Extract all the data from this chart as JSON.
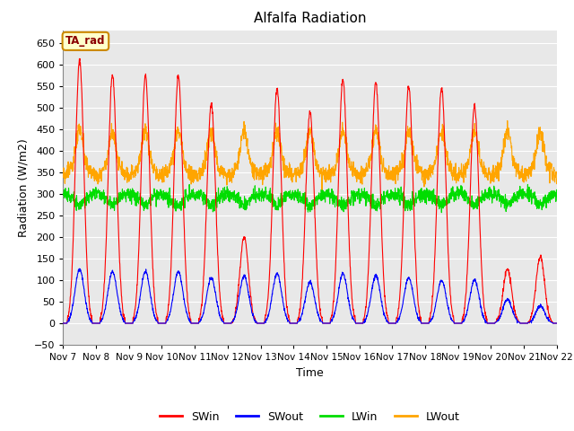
{
  "title": "Alfalfa Radiation",
  "ylabel": "Radiation (W/m2)",
  "xlabel": "Time",
  "annotation": "TA_rad",
  "ylim": [
    -50,
    680
  ],
  "yticks": [
    -50,
    0,
    50,
    100,
    150,
    200,
    250,
    300,
    350,
    400,
    450,
    500,
    550,
    600,
    650
  ],
  "xticklabels": [
    "Nov 7",
    "Nov 8",
    "Nov 9",
    "Nov 10",
    "Nov 11",
    "Nov 12",
    "Nov 13",
    "Nov 14",
    "Nov 15",
    "Nov 16",
    "Nov 17",
    "Nov 18",
    "Nov 19",
    "Nov 20",
    "Nov 21",
    "Nov 22"
  ],
  "colors": {
    "SWin": "#ff0000",
    "SWout": "#0000ff",
    "LWin": "#00dd00",
    "LWout": "#ffa500"
  },
  "outer_bg": "#ffffff",
  "plot_bg_color": "#e8e8e8",
  "grid_color": "#ffffff",
  "n_days": 15,
  "swin_peaks": [
    610,
    575,
    575,
    575,
    510,
    200,
    545,
    490,
    565,
    560,
    550,
    545,
    505,
    125,
    155
  ],
  "swout_peaks": [
    125,
    120,
    120,
    120,
    105,
    110,
    115,
    95,
    115,
    110,
    105,
    100,
    100,
    55,
    40
  ],
  "lwin_base": 300,
  "lwout_base": 340
}
